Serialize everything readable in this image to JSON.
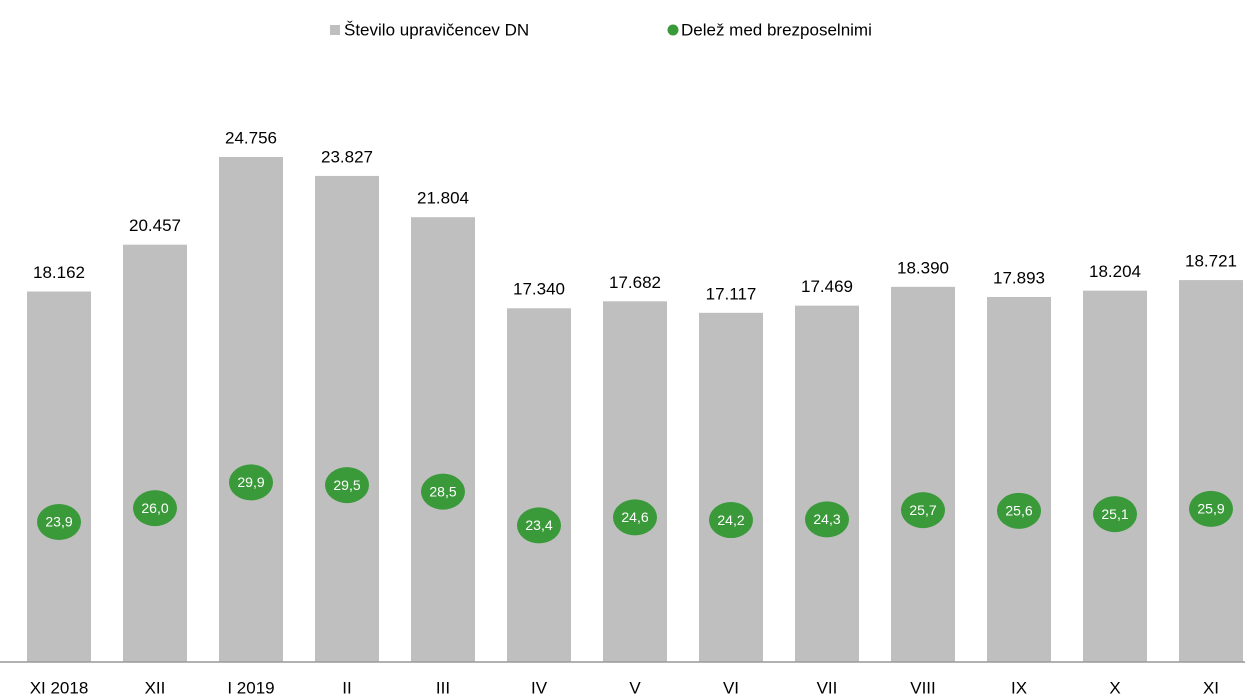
{
  "chart_data": {
    "type": "bar",
    "categories": [
      "XI 2018",
      "XII",
      "I 2019",
      "II",
      "III",
      "IV",
      "V",
      "VI",
      "VII",
      "VIII",
      "IX",
      "X",
      "XI"
    ],
    "series": [
      {
        "name": "Število upravičencev DN",
        "color": "#bfbfbf",
        "type": "bar",
        "values": [
          18162,
          20457,
          24756,
          23827,
          21804,
          17340,
          17682,
          17117,
          17469,
          18390,
          17893,
          18204,
          18721
        ],
        "value_labels": [
          "18.162",
          "20.457",
          "24.756",
          "23.827",
          "21.804",
          "17.340",
          "17.682",
          "17.117",
          "17.469",
          "18.390",
          "17.893",
          "18.204",
          "18.721"
        ]
      },
      {
        "name": "Delež med brezposelnimi",
        "color": "#3a9a3a",
        "type": "scatter",
        "axis": "y2",
        "values": [
          23.9,
          26.0,
          29.9,
          29.5,
          28.5,
          23.4,
          24.6,
          24.2,
          24.3,
          25.7,
          25.6,
          25.1,
          25.9
        ],
        "value_labels": [
          "23,9",
          "26,0",
          "29,9",
          "29,5",
          "28,5",
          "23,4",
          "24,6",
          "24,2",
          "24,3",
          "25,7",
          "25,6",
          "25,1",
          "25,9"
        ]
      }
    ],
    "ylim": [
      0,
      30000
    ],
    "y2lim": [
      2.7,
      95.4
    ],
    "legend": "top"
  }
}
